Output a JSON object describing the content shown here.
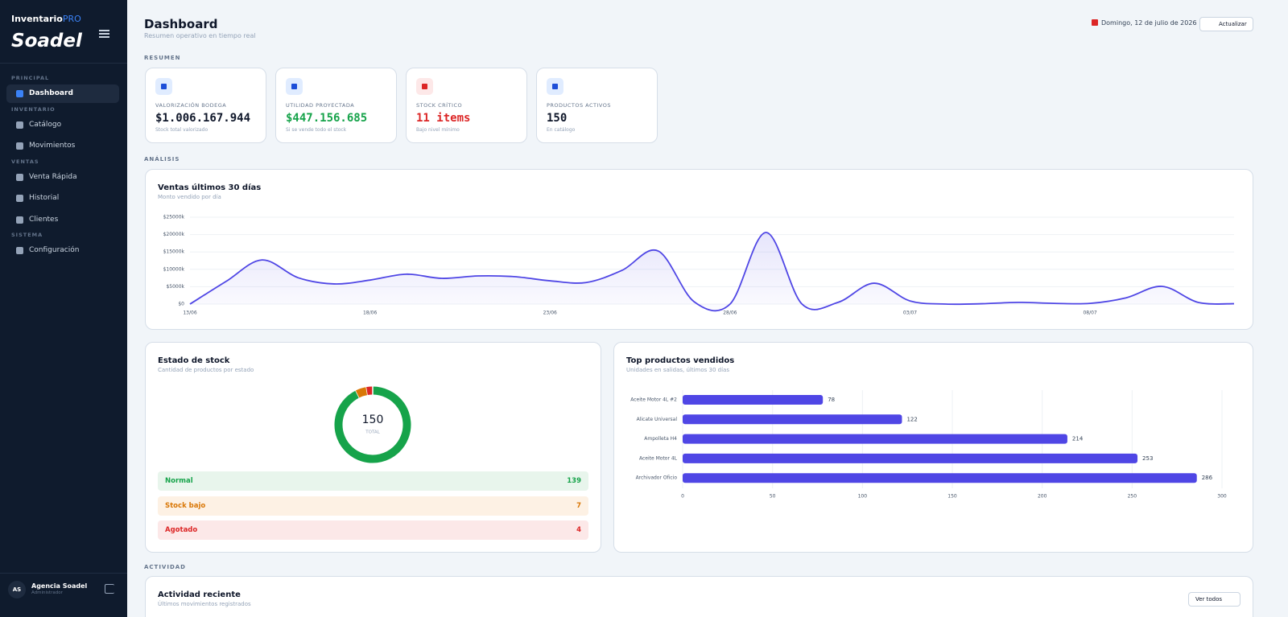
{
  "sidebar": {
    "brand": "Inventario",
    "brand_accent": "PRO",
    "logo": "Soadel",
    "sections": [
      {
        "title": "PRINCIPAL",
        "items": [
          "Dashboard"
        ]
      },
      {
        "title": "INVENTARIO",
        "items": [
          "Catálogo",
          "Movimientos"
        ]
      },
      {
        "title": "VENTAS",
        "items": [
          "Venta Rápida",
          "Historial",
          "Clientes"
        ]
      },
      {
        "title": "SISTEMA",
        "items": [
          "Configuración"
        ]
      }
    ],
    "user": {
      "initials": "AS",
      "name": "Agencia Soadel",
      "role": "Administrador"
    }
  },
  "header": {
    "title": "Dashboard",
    "subtitle": "Resumen operativo en tiempo real",
    "date": "Domingo, 12 de julio de 2026",
    "refresh": "Actualizar"
  },
  "section_titles": {
    "summary": "RESUMEN",
    "analysis": "ANÁLISIS",
    "activity": "ACTIVIDAD"
  },
  "kpis": [
    {
      "label": "VALORIZACIÓN BODEGA",
      "value": "$1.006.167.944",
      "note": "Stock total valorizado",
      "color": "#0f172a"
    },
    {
      "label": "UTILIDAD PROYECTADA",
      "value": "$447.156.685",
      "note": "Si se vende todo el stock",
      "color": "#16a34a"
    },
    {
      "label": "STOCK CRÍTICO",
      "value": "11 items",
      "note": "Bajo nivel mínimo",
      "color": "#dc2626"
    },
    {
      "label": "PRODUCTOS ACTIVOS",
      "value": "150",
      "note": "En catálogo",
      "color": "#0f172a"
    }
  ],
  "sales_chart": {
    "type": "line",
    "title": "Ventas últimos 30 días",
    "subtitle": "Monto vendido por día",
    "categories": [
      "13/06",
      null,
      null,
      null,
      null,
      "18/06",
      null,
      null,
      null,
      null,
      "23/06",
      null,
      null,
      null,
      null,
      "28/06",
      null,
      null,
      null,
      null,
      "03/07",
      null,
      null,
      null,
      null,
      "08/07",
      null,
      null,
      null,
      null
    ],
    "values": [
      0,
      6500,
      12700,
      7600,
      5800,
      6900,
      8600,
      7400,
      8100,
      7900,
      6700,
      6200,
      9700,
      15300,
      700,
      0,
      20600,
      0,
      500,
      6000,
      900,
      0,
      100,
      500,
      200,
      200,
      1800,
      5100,
      500,
      100
    ],
    "ylim": [
      0,
      25000
    ],
    "yticks": [
      {
        "value": 0,
        "label": "$0"
      },
      {
        "value": 5000,
        "label": "$5000k"
      },
      {
        "value": 10000,
        "label": "$10000k"
      },
      {
        "value": 15000,
        "label": "$15000k"
      },
      {
        "value": 20000,
        "label": "$20000k"
      },
      {
        "value": 25000,
        "label": "$25000k"
      }
    ],
    "grid": true,
    "color": "#4f46e5"
  },
  "stock": {
    "type": "pie",
    "title": "Estado de stock",
    "subtitle": "Cantidad de productos por estado",
    "total": "150",
    "total_label": "TOTAL",
    "categories": [
      "Normal",
      "Stock bajo",
      "Agotado"
    ],
    "values": [
      139,
      7,
      4
    ],
    "colors": [
      "#16a34a",
      "#d97706",
      "#dc2626"
    ]
  },
  "top_products": {
    "type": "bar",
    "title": "Top productos vendidos",
    "subtitle": "Unidades en salidas, últimos 30 días",
    "categories": [
      "Aceite Motor 4L #2",
      "Alicate Universal",
      "Ampolleta H4",
      "Aceite Motor 4L",
      "Archivador Oficio"
    ],
    "values": [
      78,
      122,
      214,
      253,
      286
    ],
    "xlim": [
      0,
      300
    ],
    "xticks": [
      0,
      50,
      100,
      150,
      200,
      250,
      300
    ],
    "grid": true,
    "color": "#4f46e5"
  },
  "activity": {
    "title": "Actividad reciente",
    "subtitle": "Últimos movimientos registrados",
    "button": "Ver todos"
  }
}
